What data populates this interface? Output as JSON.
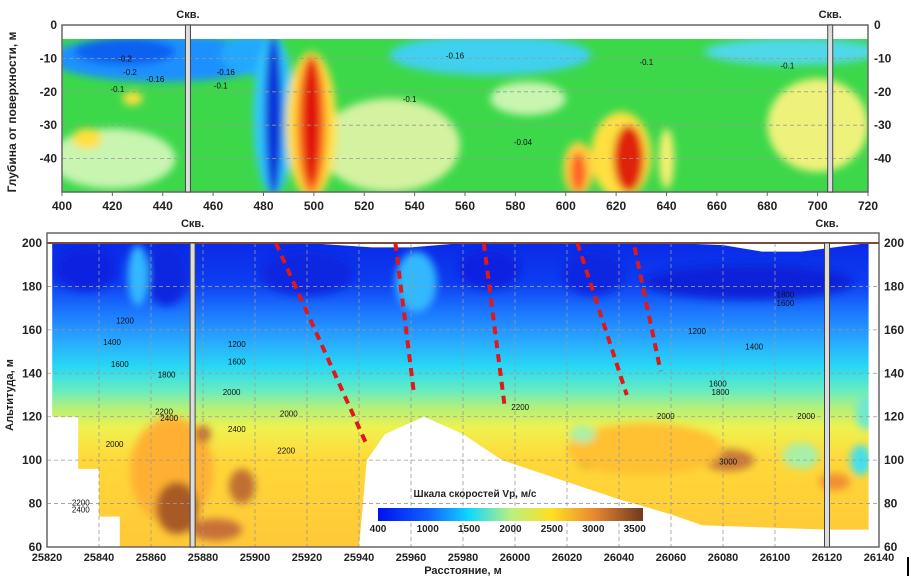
{
  "chart_data": [
    {
      "type": "heatmap",
      "ylabel": "Глубина от поверхности, м",
      "xlim": [
        400,
        720
      ],
      "ylim": [
        -50,
        0
      ],
      "x_ticks": [
        "400",
        "420",
        "440",
        "460",
        "480",
        "500",
        "520",
        "540",
        "560",
        "580",
        "600",
        "620",
        "640",
        "660",
        "680",
        "700",
        "720"
      ],
      "y_ticks": [
        "0",
        "-10",
        "-20",
        "-30",
        "-40"
      ],
      "grid": true,
      "boreholes": [
        {
          "label": "Скв.",
          "x": 450
        },
        {
          "label": "Скв.",
          "x": 705
        }
      ],
      "contour_labels": [
        {
          "text": "-0.2",
          "x": 425,
          "y": -11
        },
        {
          "text": "-0.2",
          "x": 427,
          "y": -15
        },
        {
          "text": "-0.16",
          "x": 437,
          "y": -17
        },
        {
          "text": "-0.1",
          "x": 422,
          "y": -20
        },
        {
          "text": "-0.16",
          "x": 465,
          "y": -15
        },
        {
          "text": "-0.1",
          "x": 463,
          "y": -19
        },
        {
          "text": "-0.16",
          "x": 556,
          "y": -10
        },
        {
          "text": "-0.1",
          "x": 538,
          "y": -23
        },
        {
          "text": "-0.1",
          "x": 688,
          "y": -13
        },
        {
          "text": "-0.1",
          "x": 632,
          "y": -12
        },
        {
          "text": "-0.04",
          "x": 583,
          "y": -36
        }
      ],
      "anomalies": [
        {
          "x": 440,
          "y": -10,
          "rx": 45,
          "ry": 7,
          "color": "#1e90ff"
        },
        {
          "x": 425,
          "y": -8,
          "rx": 20,
          "ry": 4,
          "color": "#1060f0"
        },
        {
          "x": 475,
          "y": -9,
          "rx": 12,
          "ry": 6,
          "color": "#20a8ff"
        },
        {
          "x": 484,
          "y": -27,
          "rx": 8,
          "ry": 24,
          "color": "#30c8ff"
        },
        {
          "x": 484,
          "y": -27,
          "rx": 3.5,
          "ry": 24,
          "color": "#1030d8"
        },
        {
          "x": 570,
          "y": -9,
          "rx": 40,
          "ry": 6,
          "color": "#40d0f0"
        },
        {
          "x": 690,
          "y": -8,
          "rx": 35,
          "ry": 4,
          "color": "#50d8e8"
        },
        {
          "x": 420,
          "y": -40,
          "rx": 25,
          "ry": 9,
          "color": "#c8f5b0"
        },
        {
          "x": 530,
          "y": -36,
          "rx": 28,
          "ry": 14,
          "color": "#d4f2a0"
        },
        {
          "x": 700,
          "y": -30,
          "rx": 20,
          "ry": 14,
          "color": "#eef27a"
        },
        {
          "x": 585,
          "y": -22,
          "rx": 15,
          "ry": 5,
          "color": "#c8f5b0"
        },
        {
          "x": 410,
          "y": -34,
          "rx": 6,
          "ry": 3,
          "color": "#ffe040"
        },
        {
          "x": 428,
          "y": -22,
          "rx": 4,
          "ry": 2,
          "color": "#ffe040"
        },
        {
          "x": 499,
          "y": -30,
          "rx": 10,
          "ry": 22,
          "color": "#ffe040"
        },
        {
          "x": 499,
          "y": -30,
          "rx": 6,
          "ry": 21,
          "color": "#ff8020"
        },
        {
          "x": 499,
          "y": -29,
          "rx": 3.5,
          "ry": 19,
          "color": "#e01010"
        },
        {
          "x": 622,
          "y": -39,
          "rx": 12,
          "ry": 13,
          "color": "#ffe040"
        },
        {
          "x": 625,
          "y": -40,
          "rx": 6,
          "ry": 10,
          "color": "#e02010"
        },
        {
          "x": 605,
          "y": -43,
          "rx": 6,
          "ry": 8,
          "color": "#ffd040"
        },
        {
          "x": 605,
          "y": -44,
          "rx": 3,
          "ry": 6,
          "color": "#ff6020"
        },
        {
          "x": 640,
          "y": -40,
          "rx": 3,
          "ry": 9,
          "color": "#f8f070"
        }
      ]
    },
    {
      "type": "heatmap",
      "xlabel": "Расстояние, м",
      "ylabel": "Альтитуда, м",
      "xlim": [
        25820,
        26140
      ],
      "ylim": [
        60,
        200
      ],
      "x_ticks": [
        "25820",
        "25840",
        "25860",
        "25880",
        "25900",
        "25920",
        "25940",
        "25960",
        "25980",
        "26000",
        "26020",
        "26040",
        "26060",
        "26080",
        "26100",
        "26120",
        "26140"
      ],
      "y_ticks": [
        "60",
        "80",
        "100",
        "120",
        "140",
        "160",
        "180",
        "200"
      ],
      "grid": true,
      "colorbar": {
        "title": "Шкала скоростей Vp, м/с",
        "ticks": [
          "400",
          "1000",
          "1500",
          "2000",
          "2500",
          "3000",
          "3500"
        ],
        "stops": [
          {
            "v": 400,
            "color": "#0010f0"
          },
          {
            "v": 1000,
            "color": "#1060ff"
          },
          {
            "v": 1500,
            "color": "#10d8ff"
          },
          {
            "v": 2000,
            "color": "#b8f080"
          },
          {
            "v": 2500,
            "color": "#ffe020"
          },
          {
            "v": 3000,
            "color": "#e88a30"
          },
          {
            "v": 3600,
            "color": "#703820"
          }
        ]
      },
      "boreholes": [
        {
          "label": "Скв.",
          "x": 25876
        },
        {
          "label": "Скв.",
          "x": 26120
        }
      ],
      "fault_lines": [
        {
          "x": [
            25908,
            25943
          ],
          "y": [
            200,
            107
          ]
        },
        {
          "x": [
            25954,
            25961
          ],
          "y": [
            200,
            132
          ]
        },
        {
          "x": [
            25988,
            25996
          ],
          "y": [
            200,
            125
          ]
        },
        {
          "x": [
            26024,
            26043
          ],
          "y": [
            200,
            130
          ]
        },
        {
          "x": [
            26046,
            26056
          ],
          "y": [
            198,
            141
          ]
        }
      ],
      "fault_color": "#e01818",
      "contour_labels": [
        {
          "text": "1200",
          "x": 25850,
          "y": 163
        },
        {
          "text": "1400",
          "x": 25845,
          "y": 153
        },
        {
          "text": "1600",
          "x": 25848,
          "y": 143
        },
        {
          "text": "1800",
          "x": 25866,
          "y": 138
        },
        {
          "text": "1200",
          "x": 25893,
          "y": 152
        },
        {
          "text": "1600",
          "x": 25893,
          "y": 144
        },
        {
          "text": "2000",
          "x": 25891,
          "y": 130
        },
        {
          "text": "2200",
          "x": 25865,
          "y": 121
        },
        {
          "text": "2400",
          "x": 25867,
          "y": 118
        },
        {
          "text": "2000",
          "x": 25846,
          "y": 106
        },
        {
          "text": "2400",
          "x": 25893,
          "y": 113
        },
        {
          "text": "2000",
          "x": 25913,
          "y": 120
        },
        {
          "text": "2200",
          "x": 25912,
          "y": 103
        },
        {
          "text": "2200",
          "x": 25833,
          "y": 79
        },
        {
          "text": "2400",
          "x": 25833,
          "y": 76
        },
        {
          "text": "1200",
          "x": 26070,
          "y": 158
        },
        {
          "text": "1400",
          "x": 26092,
          "y": 151
        },
        {
          "text": "1600",
          "x": 26078,
          "y": 134
        },
        {
          "text": "1800",
          "x": 26079,
          "y": 130
        },
        {
          "text": "2000",
          "x": 26058,
          "y": 119
        },
        {
          "text": "2000",
          "x": 26112,
          "y": 119
        },
        {
          "text": "2200",
          "x": 26002,
          "y": 123
        },
        {
          "text": "3000",
          "x": 26082,
          "y": 98
        },
        {
          "text": "1800",
          "x": 26104,
          "y": 175
        },
        {
          "text": "1600",
          "x": 26104,
          "y": 171
        }
      ],
      "boundary": {
        "x": [
          25822,
          25822,
          25832,
          25832,
          25840,
          25840,
          25848,
          25848,
          25940,
          25943,
          25950,
          25965,
          25980,
          25995,
          26020,
          26040,
          26060,
          26072,
          26120,
          26136,
          26136,
          26110,
          26095,
          26080,
          26060,
          25980,
          25960,
          25945,
          25920,
          25822
        ],
        "y": [
          200,
          120,
          120,
          96,
          96,
          74,
          74,
          60,
          60,
          100,
          112,
          120,
          112,
          100,
          90,
          82,
          75,
          70,
          68,
          68,
          200,
          196,
          196,
          199,
          200,
          200,
          198,
          198,
          200,
          200
        ]
      },
      "anomalies": [
        {
          "x": 25835,
          "y": 188,
          "rx": 12,
          "ry": 10,
          "color": "#0820e0"
        },
        {
          "x": 25866,
          "y": 185,
          "rx": 8,
          "ry": 14,
          "color": "#0828e0"
        },
        {
          "x": 25920,
          "y": 186,
          "rx": 18,
          "ry": 10,
          "color": "#0828e0"
        },
        {
          "x": 25990,
          "y": 188,
          "rx": 12,
          "ry": 9,
          "color": "#0824e0"
        },
        {
          "x": 26030,
          "y": 186,
          "rx": 12,
          "ry": 10,
          "color": "#0828e0"
        },
        {
          "x": 26090,
          "y": 182,
          "rx": 40,
          "ry": 8,
          "color": "#0820d8"
        },
        {
          "x": 25855,
          "y": 185,
          "rx": 4,
          "ry": 14,
          "color": "#30b8ff"
        },
        {
          "x": 25962,
          "y": 182,
          "rx": 8,
          "ry": 14,
          "color": "#30b8ff"
        },
        {
          "x": 25868,
          "y": 95,
          "rx": 16,
          "ry": 25,
          "color": "#ffb030"
        },
        {
          "x": 25870,
          "y": 78,
          "rx": 8,
          "ry": 12,
          "color": "#a85a28"
        },
        {
          "x": 25885,
          "y": 68,
          "rx": 10,
          "ry": 5,
          "color": "#c87038"
        },
        {
          "x": 25895,
          "y": 88,
          "rx": 5,
          "ry": 8,
          "color": "#c07030"
        },
        {
          "x": 25880,
          "y": 112,
          "rx": 3,
          "ry": 4,
          "color": "#c07030"
        },
        {
          "x": 26030,
          "y": 102,
          "rx": 7,
          "ry": 6,
          "color": "#a05020"
        },
        {
          "x": 26058,
          "y": 112,
          "rx": 6,
          "ry": 3,
          "color": "#a85a28"
        },
        {
          "x": 26082,
          "y": 100,
          "rx": 10,
          "ry": 5,
          "color": "#c87838"
        },
        {
          "x": 26050,
          "y": 105,
          "rx": 30,
          "ry": 12,
          "color": "#ffc030"
        },
        {
          "x": 26123,
          "y": 90,
          "rx": 6,
          "ry": 4,
          "color": "#f09030"
        },
        {
          "x": 26110,
          "y": 102,
          "rx": 7,
          "ry": 6,
          "color": "#a8f0a8"
        },
        {
          "x": 26026,
          "y": 112,
          "rx": 5,
          "ry": 4,
          "color": "#a8f0a8"
        },
        {
          "x": 26133,
          "y": 100,
          "rx": 4,
          "ry": 7,
          "color": "#40e0f0"
        },
        {
          "x": 26135,
          "y": 122,
          "rx": 4,
          "ry": 8,
          "color": "#70e8d0"
        }
      ]
    }
  ]
}
